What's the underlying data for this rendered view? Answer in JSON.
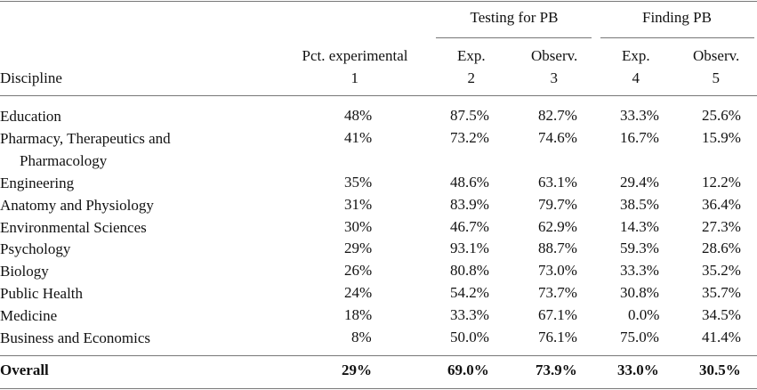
{
  "table": {
    "column_groups": [
      {
        "label": "Testing for PB"
      },
      {
        "label": "Finding PB"
      }
    ],
    "columns": [
      {
        "label": "Discipline"
      },
      {
        "label": "Pct. experimental",
        "number": "1"
      },
      {
        "label": "Exp.",
        "number": "2"
      },
      {
        "label": "Observ.",
        "number": "3"
      },
      {
        "label": "Exp.",
        "number": "4"
      },
      {
        "label": "Observ.",
        "number": "5"
      }
    ],
    "rows": [
      [
        "Education",
        "48%",
        "87.5%",
        "82.7%",
        "33.3%",
        "25.6%"
      ],
      [
        "Pharmacy, Therapeutics and Pharmacology",
        "41%",
        "73.2%",
        "74.6%",
        "16.7%",
        "15.9%"
      ],
      [
        "Engineering",
        "35%",
        "48.6%",
        "63.1%",
        "29.4%",
        "12.2%"
      ],
      [
        "Anatomy and Physiology",
        "31%",
        "83.9%",
        "79.7%",
        "38.5%",
        "36.4%"
      ],
      [
        "Environmental Sciences",
        "30%",
        "46.7%",
        "62.9%",
        "14.3%",
        "27.3%"
      ],
      [
        "Psychology",
        "29%",
        "93.1%",
        "88.7%",
        "59.3%",
        "28.6%"
      ],
      [
        "Biology",
        "26%",
        "80.8%",
        "73.0%",
        "33.3%",
        "35.2%"
      ],
      [
        "Public Health",
        "24%",
        "54.2%",
        "73.7%",
        "30.8%",
        "35.7%"
      ],
      [
        "Medicine",
        "18%",
        "33.3%",
        "67.1%",
        "0.0%",
        "34.5%"
      ],
      [
        "Business and Economics",
        "8%",
        "50.0%",
        "76.1%",
        "75.0%",
        "41.4%"
      ]
    ],
    "total": [
      "Overall",
      "29%",
      "69.0%",
      "73.9%",
      "33.0%",
      "30.5%"
    ]
  }
}
